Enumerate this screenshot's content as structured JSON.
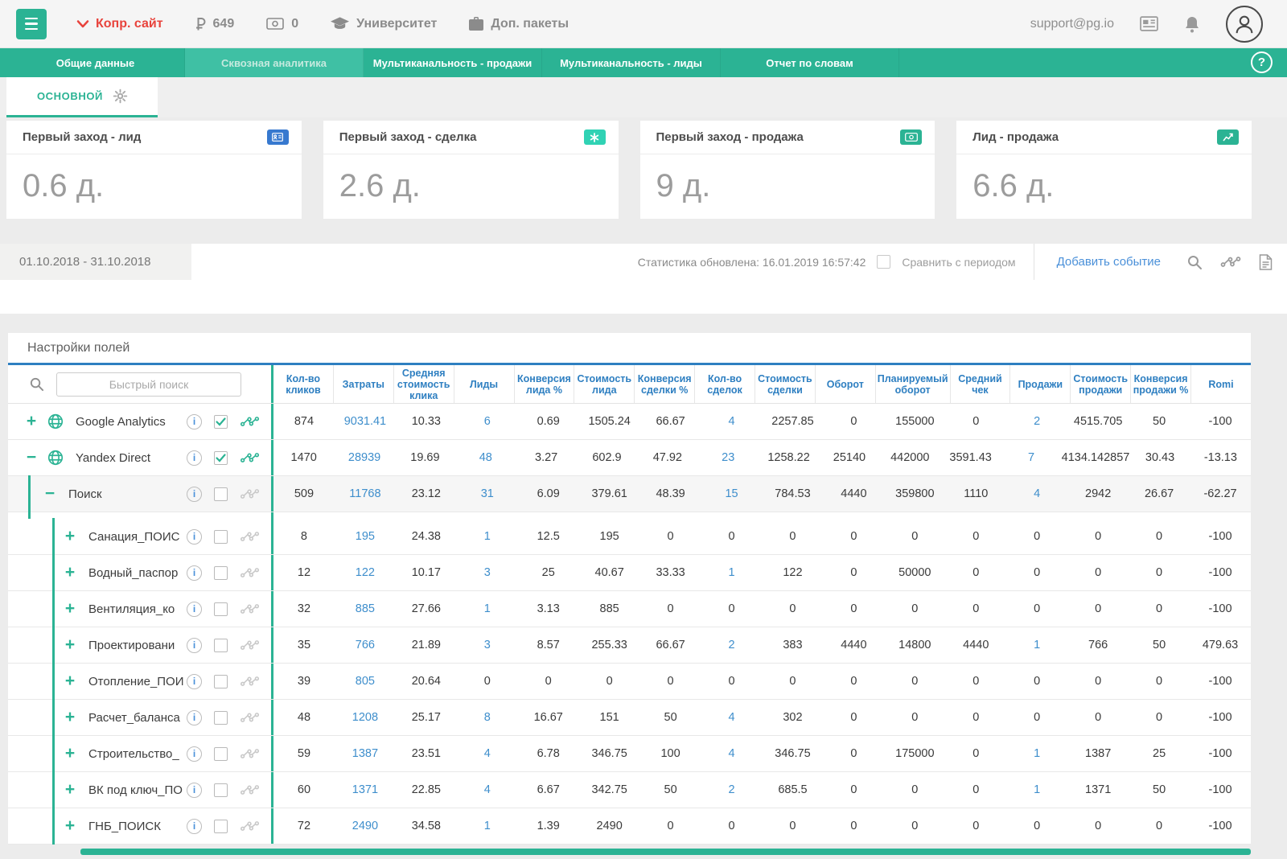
{
  "colors": {
    "accent": "#2bb394",
    "active_tab": "#3fc0a4",
    "link_blue": "#4a90d9",
    "header_blue": "#2e7fc1",
    "alert_red": "#e8433c"
  },
  "icons": {
    "topbar": [
      "hamburger-menu",
      "chevron-down",
      "ruble",
      "banknote",
      "graduation-cap",
      "briefcase",
      "newspaper",
      "bell",
      "avatar"
    ],
    "nav": [
      "help-question"
    ],
    "subtab": [
      "gear"
    ],
    "cards": [
      "id-card",
      "asterisk",
      "banknote",
      "trend-chart"
    ],
    "period": [
      "search",
      "pulse-chart",
      "report-file"
    ],
    "table": [
      "search",
      "plus",
      "minus",
      "globe",
      "info",
      "checkbox",
      "sparkline"
    ]
  },
  "topbar": {
    "site_label": "Копр. сайт",
    "balance": "649",
    "credits": "0",
    "university": "Университет",
    "packages": "Доп. пакеты",
    "email": "support@pg.io"
  },
  "nav": {
    "help_label": "?",
    "tabs": [
      {
        "label": "Общие данные",
        "active": false
      },
      {
        "label": "Сквозная аналитика",
        "active": true
      },
      {
        "label": "Мультиканальность - продажи",
        "active": false
      },
      {
        "label": "Мультиканальность - лиды",
        "active": false
      },
      {
        "label": "Отчет по словам",
        "active": false
      }
    ]
  },
  "subtab": {
    "label": "ОСНОВНОЙ"
  },
  "cards": [
    {
      "title": "Первый заход - лид",
      "value": "0.6 д.",
      "icon": "id-card",
      "color": "#3779cf"
    },
    {
      "title": "Первый заход - сделка",
      "value": "2.6 д.",
      "icon": "asterisk",
      "color": "#30d2b4"
    },
    {
      "title": "Первый заход - продажа",
      "value": "9 д.",
      "icon": "banknote",
      "color": "#2bb394"
    },
    {
      "title": "Лид - продажа",
      "value": "6.6 д.",
      "icon": "chart",
      "color": "#2bb394"
    }
  ],
  "period": {
    "range": "01.10.2018 - 31.10.2018",
    "updated": "Статистика обновлена: 16.01.2019 16:57:42",
    "compare_label": "Сравнить с периодом",
    "compare_checked": false,
    "add_event": "Добавить событие"
  },
  "table": {
    "settings_label": "Настройки полей",
    "search_placeholder": "Быстрый поиск",
    "columns": [
      "Кол-во кликов",
      "Затраты",
      "Средняя стоимость клика",
      "Лиды",
      "Конверсия лида %",
      "Стоимость лида",
      "Конверсия сделки %",
      "Кол-во сделок",
      "Стоимость сделки",
      "Оборот",
      "Планируемый оборот",
      "Средний чек",
      "Продажи",
      "Стоимость продажи",
      "Конверсия продажи %",
      "Romi"
    ],
    "link_columns": [
      1,
      3,
      7,
      12
    ],
    "rows": [
      {
        "name": "Google Analytics",
        "level": 0,
        "expand": "plus",
        "globe": true,
        "checked": true,
        "spark": true,
        "shaded": false,
        "values": [
          "874",
          "9031.41",
          "10.33",
          "6",
          "0.69",
          "1505.24",
          "66.67",
          "4",
          "2257.85",
          "0",
          "155000",
          "0",
          "2",
          "4515.705",
          "50",
          "-100"
        ]
      },
      {
        "name": "Yandex Direct",
        "level": 0,
        "expand": "minus",
        "globe": true,
        "checked": true,
        "spark": true,
        "shaded": false,
        "values": [
          "1470",
          "28939",
          "19.69",
          "48",
          "3.27",
          "602.9",
          "47.92",
          "23",
          "1258.22",
          "25140",
          "442000",
          "3591.43",
          "7",
          "4134.142857",
          "30.43",
          "-13.13"
        ]
      },
      {
        "name": "Поиск",
        "level": 1,
        "expand": "minus",
        "globe": false,
        "checked": false,
        "spark": false,
        "shaded": true,
        "values": [
          "509",
          "11768",
          "23.12",
          "31",
          "6.09",
          "379.61",
          "48.39",
          "15",
          "784.53",
          "4440",
          "359800",
          "1110",
          "4",
          "2942",
          "26.67",
          "-62.27"
        ]
      },
      {
        "name": "Санация_ПОИС",
        "level": 2,
        "expand": "plus",
        "globe": false,
        "checked": false,
        "spark": false,
        "shaded": false,
        "values": [
          "8",
          "195",
          "24.38",
          "1",
          "12.5",
          "195",
          "0",
          "0",
          "0",
          "0",
          "0",
          "0",
          "0",
          "0",
          "0",
          "-100"
        ]
      },
      {
        "name": "Водный_паспор",
        "level": 2,
        "expand": "plus",
        "globe": false,
        "checked": false,
        "spark": false,
        "shaded": false,
        "values": [
          "12",
          "122",
          "10.17",
          "3",
          "25",
          "40.67",
          "33.33",
          "1",
          "122",
          "0",
          "50000",
          "0",
          "0",
          "0",
          "0",
          "-100"
        ]
      },
      {
        "name": "Вентиляция_ко",
        "level": 2,
        "expand": "plus",
        "globe": false,
        "checked": false,
        "spark": false,
        "shaded": false,
        "values": [
          "32",
          "885",
          "27.66",
          "1",
          "3.13",
          "885",
          "0",
          "0",
          "0",
          "0",
          "0",
          "0",
          "0",
          "0",
          "0",
          "-100"
        ]
      },
      {
        "name": "Проектировани",
        "level": 2,
        "expand": "plus",
        "globe": false,
        "checked": false,
        "spark": false,
        "shaded": false,
        "values": [
          "35",
          "766",
          "21.89",
          "3",
          "8.57",
          "255.33",
          "66.67",
          "2",
          "383",
          "4440",
          "14800",
          "4440",
          "1",
          "766",
          "50",
          "479.63"
        ]
      },
      {
        "name": "Отопление_ПОИ",
        "level": 2,
        "expand": "plus",
        "globe": false,
        "checked": false,
        "spark": false,
        "shaded": false,
        "values": [
          "39",
          "805",
          "20.64",
          "0",
          "0",
          "0",
          "0",
          "0",
          "0",
          "0",
          "0",
          "0",
          "0",
          "0",
          "0",
          "-100"
        ]
      },
      {
        "name": "Расчет_баланса",
        "level": 2,
        "expand": "plus",
        "globe": false,
        "checked": false,
        "spark": false,
        "shaded": false,
        "values": [
          "48",
          "1208",
          "25.17",
          "8",
          "16.67",
          "151",
          "50",
          "4",
          "302",
          "0",
          "0",
          "0",
          "0",
          "0",
          "0",
          "-100"
        ]
      },
      {
        "name": "Строительство_",
        "level": 2,
        "expand": "plus",
        "globe": false,
        "checked": false,
        "spark": false,
        "shaded": false,
        "values": [
          "59",
          "1387",
          "23.51",
          "4",
          "6.78",
          "346.75",
          "100",
          "4",
          "346.75",
          "0",
          "175000",
          "0",
          "1",
          "1387",
          "25",
          "-100"
        ]
      },
      {
        "name": "ВК под ключ_ПО",
        "level": 2,
        "expand": "plus",
        "globe": false,
        "checked": false,
        "spark": false,
        "shaded": false,
        "values": [
          "60",
          "1371",
          "22.85",
          "4",
          "6.67",
          "342.75",
          "50",
          "2",
          "685.5",
          "0",
          "0",
          "0",
          "1",
          "1371",
          "50",
          "-100"
        ]
      },
      {
        "name": "ГНБ_ПОИСК",
        "level": 2,
        "expand": "plus",
        "globe": false,
        "checked": false,
        "spark": false,
        "shaded": false,
        "values": [
          "72",
          "2490",
          "34.58",
          "1",
          "1.39",
          "2490",
          "0",
          "0",
          "0",
          "0",
          "0",
          "0",
          "0",
          "0",
          "0",
          "-100"
        ]
      }
    ]
  }
}
